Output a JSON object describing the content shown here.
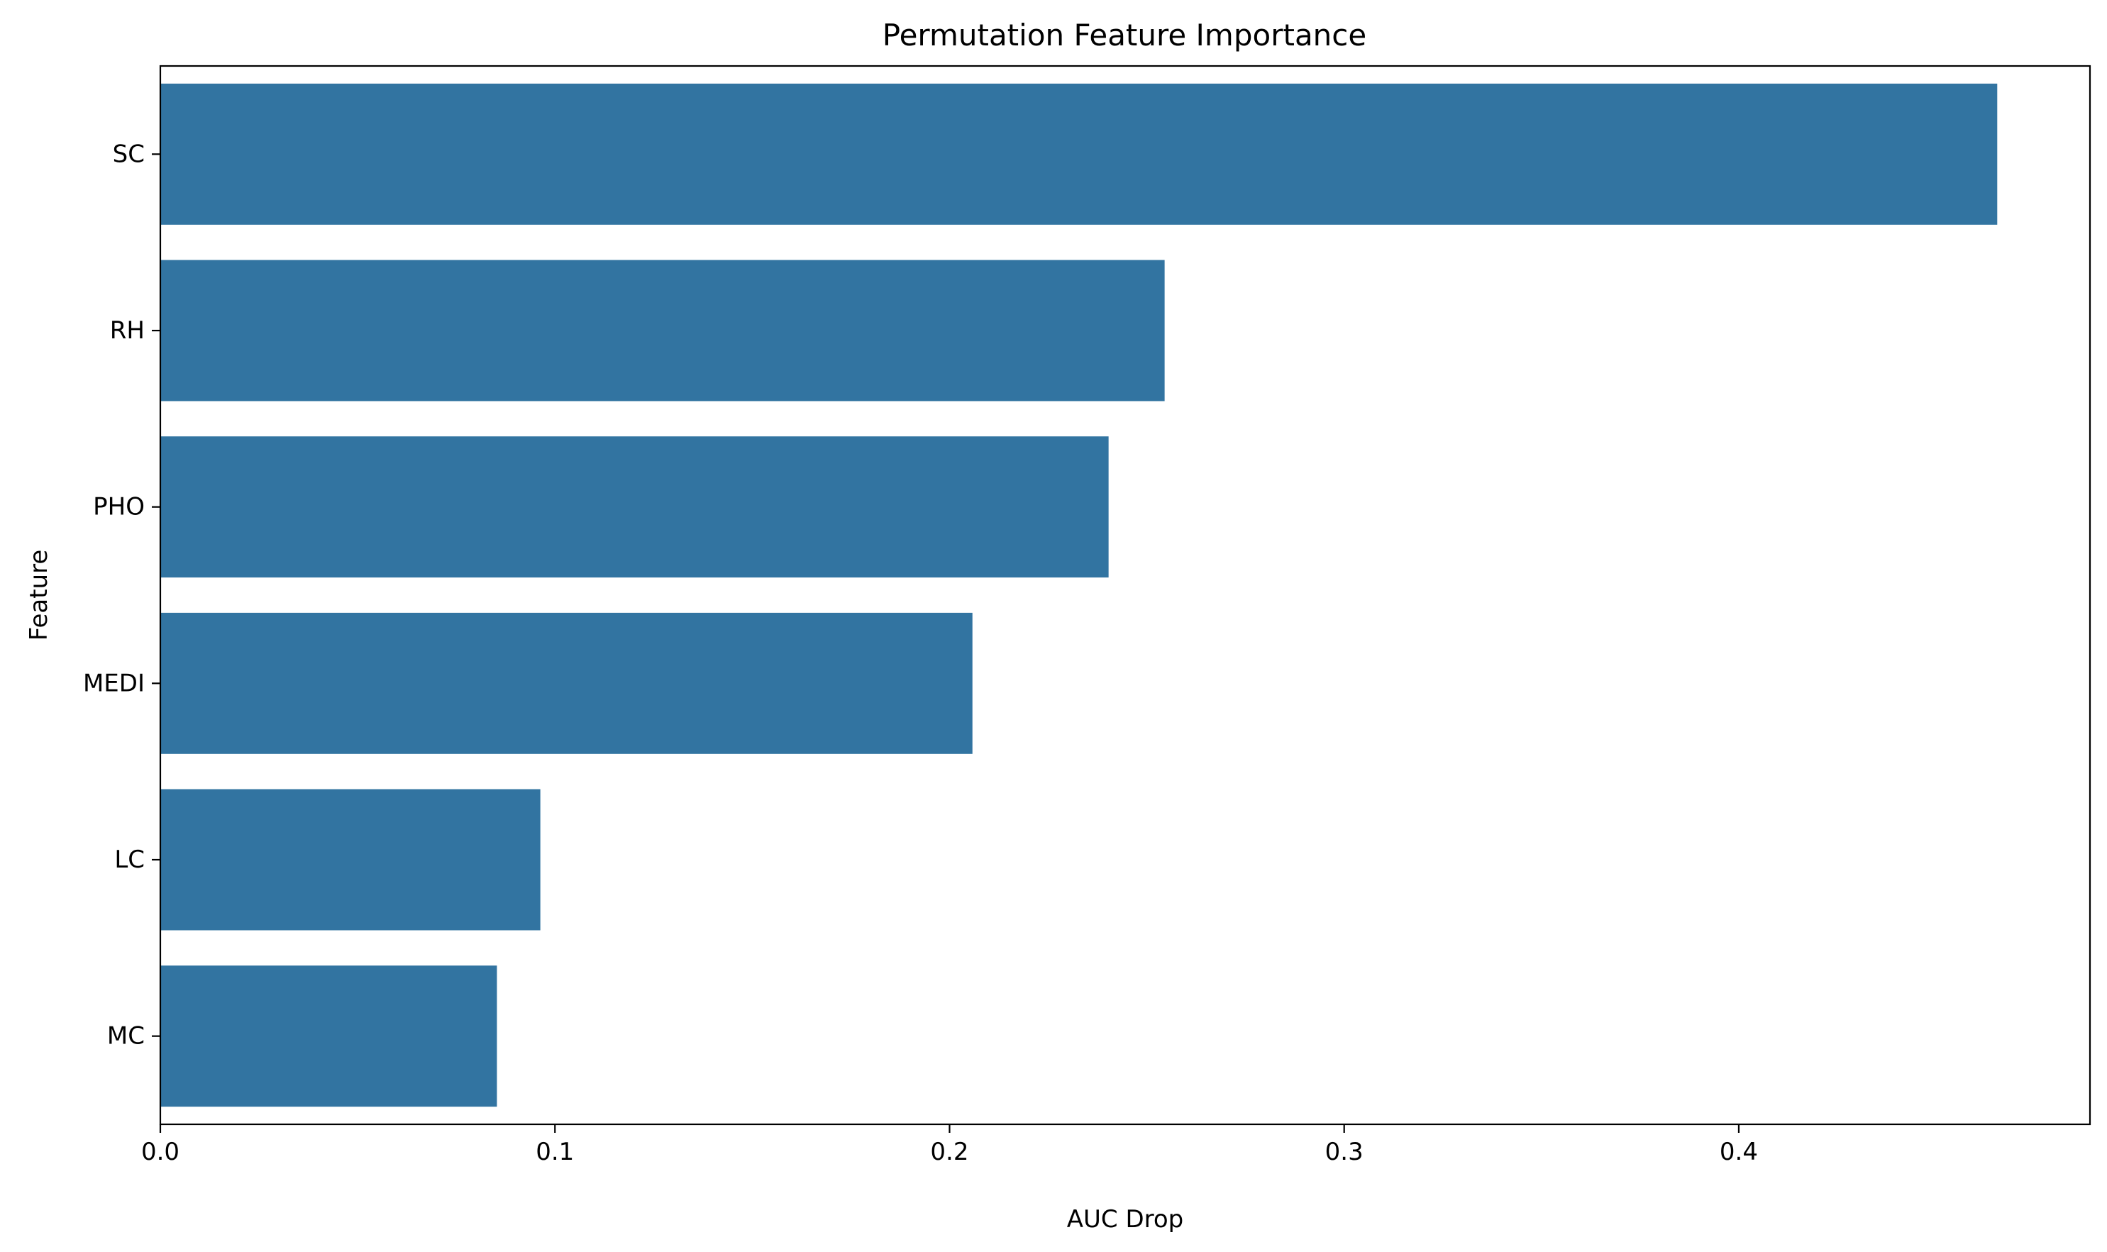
{
  "chart_data": {
    "type": "bar",
    "orientation": "horizontal",
    "title": "Permutation Feature Importance",
    "xlabel": "AUC Drop",
    "ylabel": "Feature",
    "categories": [
      "SC",
      "RH",
      "PHO",
      "MEDI",
      "LC",
      "MC"
    ],
    "values": [
      0.4655,
      0.2545,
      0.2403,
      0.2058,
      0.0963,
      0.0853
    ],
    "xlim": [
      0,
      0.489
    ],
    "xticks": [
      0.0,
      0.1,
      0.2,
      0.3,
      0.4
    ],
    "xtick_labels": [
      "0.0",
      "0.1",
      "0.2",
      "0.3",
      "0.4"
    ],
    "grid": false,
    "legend": "none",
    "colors": {
      "bar": "#3274a1",
      "axis": "#000000",
      "background": "#ffffff"
    }
  }
}
